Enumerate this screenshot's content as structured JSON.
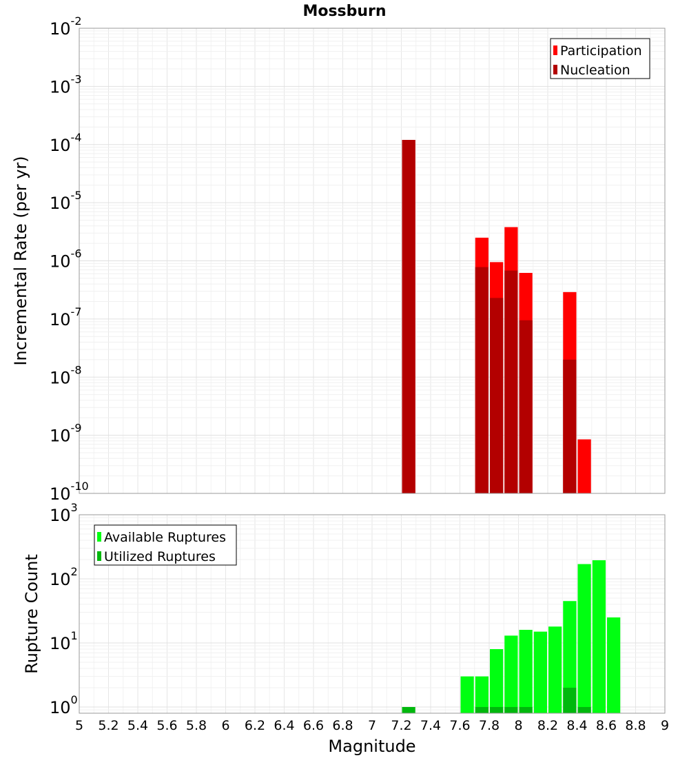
{
  "chart_data": {
    "type": "bar",
    "title": "Mossburn",
    "xlabel": "Magnitude",
    "xlim": [
      5,
      9
    ],
    "x_ticks": [
      "5",
      "5.2",
      "5.4",
      "5.6",
      "5.8",
      "6",
      "6.2",
      "6.4",
      "6.6",
      "6.8",
      "7",
      "7.2",
      "7.4",
      "7.6",
      "7.8",
      "8",
      "8.2",
      "8.4",
      "8.6",
      "8.8",
      "9"
    ],
    "grid": true,
    "panels": [
      {
        "name": "rate",
        "ylabel": "Incremental Rate (per yr)",
        "yscale": "log",
        "ylim": [
          1e-10,
          0.01
        ],
        "y_tick_exponents": [
          "-10",
          "-9",
          "-8",
          "-7",
          "-6",
          "-5",
          "-4",
          "-3",
          "-2"
        ],
        "legend_position": "top-right",
        "series": [
          {
            "name": "Participation",
            "color": "#ff0000",
            "x": [
              7.25,
              7.75,
              7.85,
              7.95,
              8.05,
              8.35,
              8.45
            ],
            "values": [
              0.00012,
              2.5e-06,
              9.5e-07,
              3.8e-06,
              6.2e-07,
              2.9e-07,
              8.5e-10
            ]
          },
          {
            "name": "Nucleation",
            "color": "#b30000",
            "x": [
              7.25,
              7.75,
              7.85,
              7.95,
              8.05,
              8.35
            ],
            "values": [
              0.00012,
              7.8e-07,
              2.3e-07,
              6.8e-07,
              9.5e-08,
              2e-08
            ]
          }
        ]
      },
      {
        "name": "count",
        "ylabel": "Rupture Count",
        "yscale": "log",
        "ylim": [
          0.8,
          1000
        ],
        "y_tick_exponents": [
          "0",
          "1",
          "2",
          "3"
        ],
        "legend_position": "top-left",
        "series": [
          {
            "name": "Available Ruptures",
            "color": "#00ff11",
            "x": [
              7.65,
              7.75,
              7.85,
              7.95,
              8.05,
              8.15,
              8.25,
              8.35,
              8.45,
              8.55,
              8.65
            ],
            "values": [
              3,
              3,
              8,
              13,
              16,
              15,
              18,
              45,
              170,
              195,
              25
            ]
          },
          {
            "name": "Utilized Ruptures",
            "color": "#00b80d",
            "x": [
              7.25,
              7.75,
              7.85,
              7.95,
              8.05,
              8.35,
              8.45
            ],
            "values": [
              1,
              1,
              1,
              1,
              1,
              2,
              1
            ]
          }
        ]
      }
    ]
  }
}
